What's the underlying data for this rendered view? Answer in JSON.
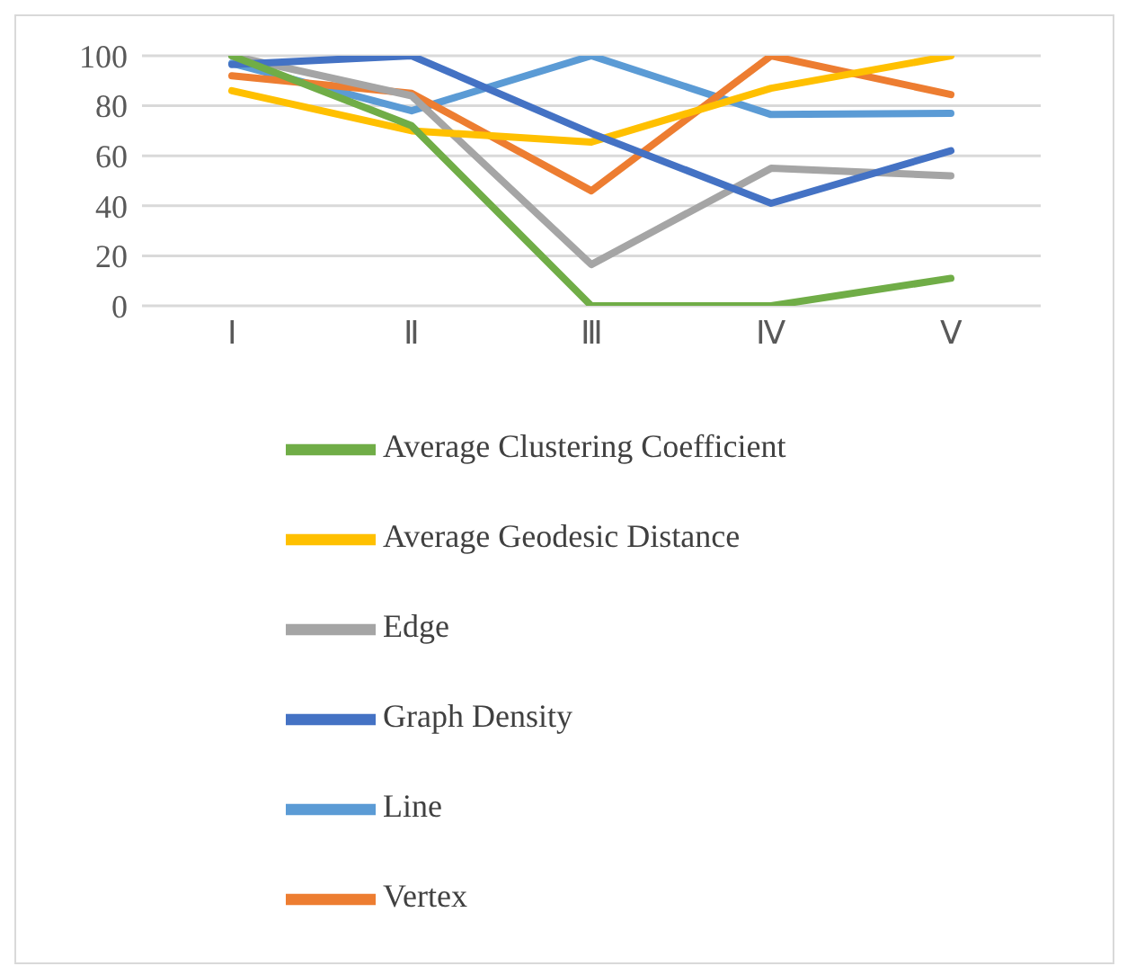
{
  "chart_data": {
    "type": "line",
    "categories": [
      "Ⅰ",
      "Ⅱ",
      "Ⅲ",
      "Ⅳ",
      "Ⅴ"
    ],
    "ylim": [
      0,
      100
    ],
    "yticks": [
      0,
      20,
      40,
      60,
      80,
      100
    ],
    "grid": "y",
    "legend": "bottom",
    "marker": "none",
    "line_style": "solid",
    "series": [
      {
        "name": "Line",
        "color": "#5b9bd5",
        "values": [
          97,
          78,
          100,
          76.5,
          77
        ]
      },
      {
        "name": "Vertex",
        "color": "#ed7d31",
        "values": [
          92,
          85,
          46,
          100,
          84.5
        ]
      },
      {
        "name": "Edge",
        "color": "#a5a5a5",
        "values": [
          100,
          84,
          16.5,
          55,
          52
        ]
      },
      {
        "name": "Average Geodesic Distance",
        "color": "#ffc000",
        "values": [
          86,
          70,
          65.5,
          87,
          100
        ]
      },
      {
        "name": "Graph Density",
        "color": "#4472c4",
        "values": [
          96.5,
          100,
          69,
          41,
          62
        ]
      },
      {
        "name": "Average Clustering Coefficient",
        "color": "#70ad47",
        "values": [
          100,
          72,
          0,
          0,
          11
        ]
      }
    ]
  }
}
